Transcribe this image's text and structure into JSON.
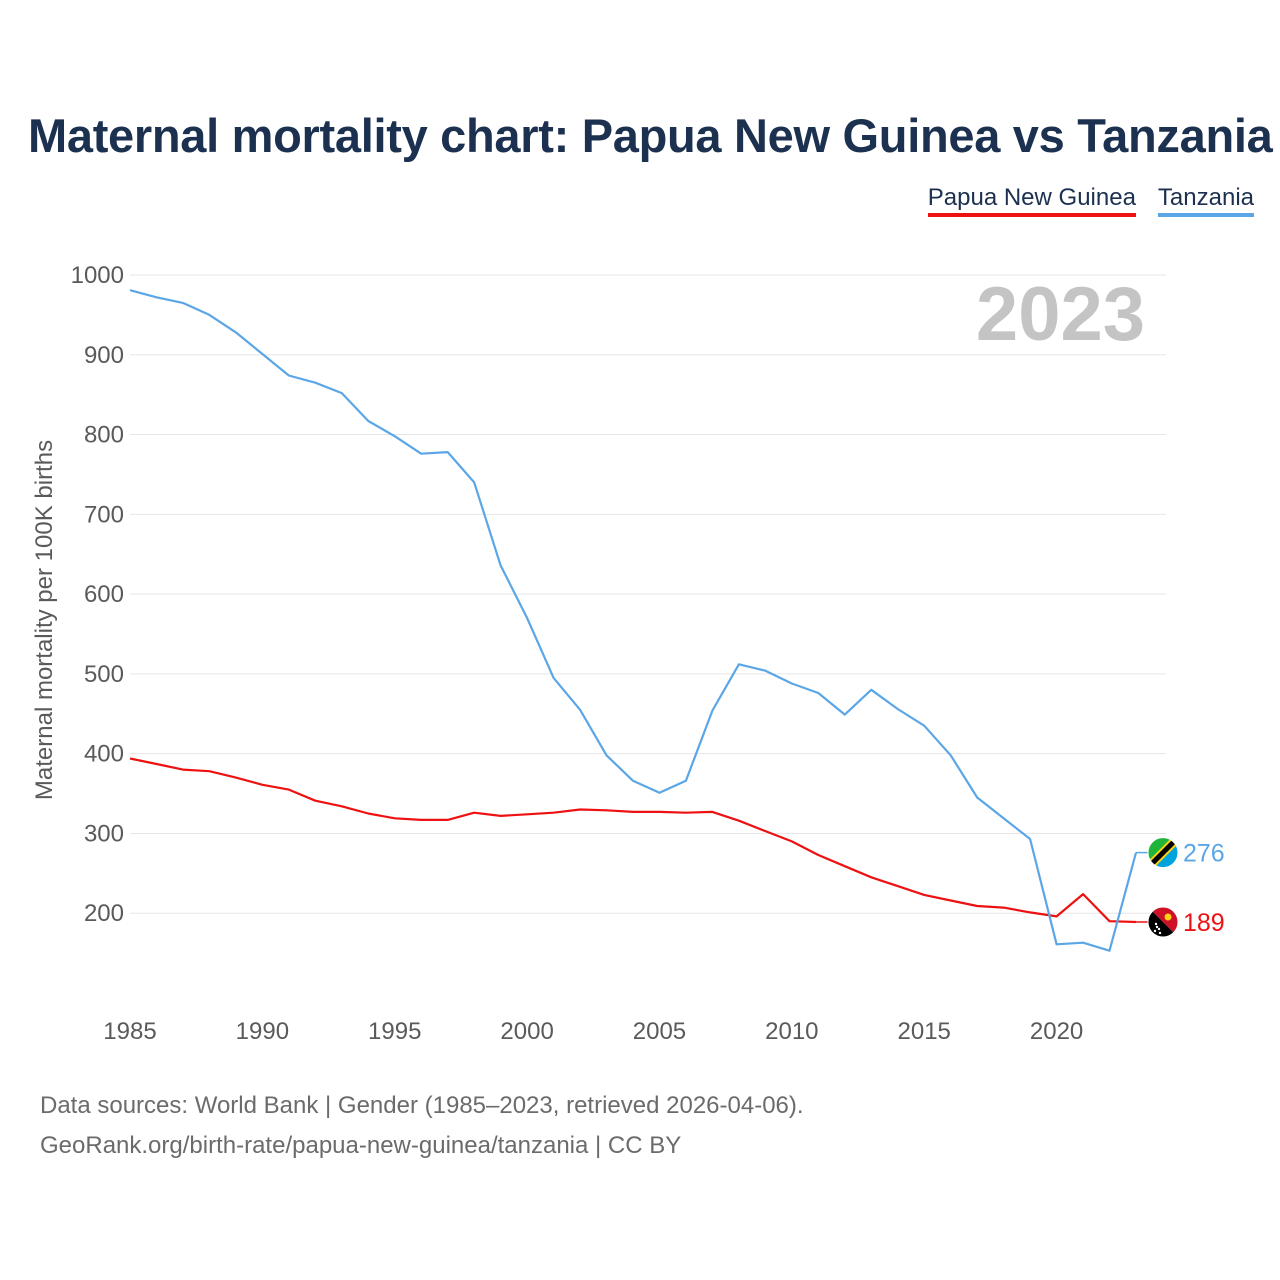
{
  "title": "Maternal mortality chart: Papua New Guinea vs Tanzania",
  "legend": [
    {
      "label": "Papua New Guinea",
      "color": "#ee1111"
    },
    {
      "label": "Tanzania",
      "color": "#5ba6e6"
    }
  ],
  "year_watermark": "2023",
  "footer": {
    "line1": "Data sources: World Bank | Gender (1985–2023, retrieved 2026-04-06).",
    "line2": "GeoRank.org/birth-rate/papua-new-guinea/tanzania | CC BY"
  },
  "chart_data": {
    "type": "line",
    "title": "Maternal mortality chart: Papua New Guinea vs Tanzania",
    "xlabel": "",
    "ylabel": "Maternal mortality per 100K births",
    "xlim": [
      1985,
      2023
    ],
    "ylim": [
      100,
      1000
    ],
    "x_ticks": [
      1985,
      1990,
      1995,
      2000,
      2005,
      2010,
      2015,
      2020
    ],
    "y_ticks": [
      200,
      300,
      400,
      500,
      600,
      700,
      800,
      900,
      1000
    ],
    "x": [
      1985,
      1986,
      1987,
      1988,
      1989,
      1990,
      1991,
      1992,
      1993,
      1994,
      1995,
      1996,
      1997,
      1998,
      1999,
      2000,
      2001,
      2002,
      2003,
      2004,
      2005,
      2006,
      2007,
      2008,
      2009,
      2010,
      2011,
      2012,
      2013,
      2014,
      2015,
      2016,
      2017,
      2018,
      2019,
      2020,
      2021,
      2022,
      2023
    ],
    "series": [
      {
        "name": "Papua New Guinea",
        "color": "#ee1111",
        "flag": "papua-new-guinea-flag-icon",
        "end_label": "189",
        "values": [
          394,
          387,
          380,
          378,
          370,
          361,
          355,
          341,
          334,
          325,
          319,
          317,
          317,
          326,
          322,
          324,
          326,
          330,
          329,
          327,
          327,
          326,
          327,
          316,
          303,
          290,
          273,
          259,
          245,
          234,
          223,
          216,
          209,
          207,
          201,
          196,
          224,
          190,
          189
        ]
      },
      {
        "name": "Tanzania",
        "color": "#5ba6e6",
        "flag": "tanzania-flag-icon",
        "end_label": "276",
        "values": [
          981,
          972,
          965,
          950,
          928,
          901,
          874,
          865,
          852,
          817,
          798,
          776,
          778,
          740,
          636,
          570,
          495,
          455,
          398,
          366,
          351,
          366,
          454,
          512,
          504,
          488,
          476,
          449,
          480,
          456,
          435,
          398,
          345,
          319,
          293,
          161,
          163,
          153,
          276
        ]
      }
    ]
  }
}
